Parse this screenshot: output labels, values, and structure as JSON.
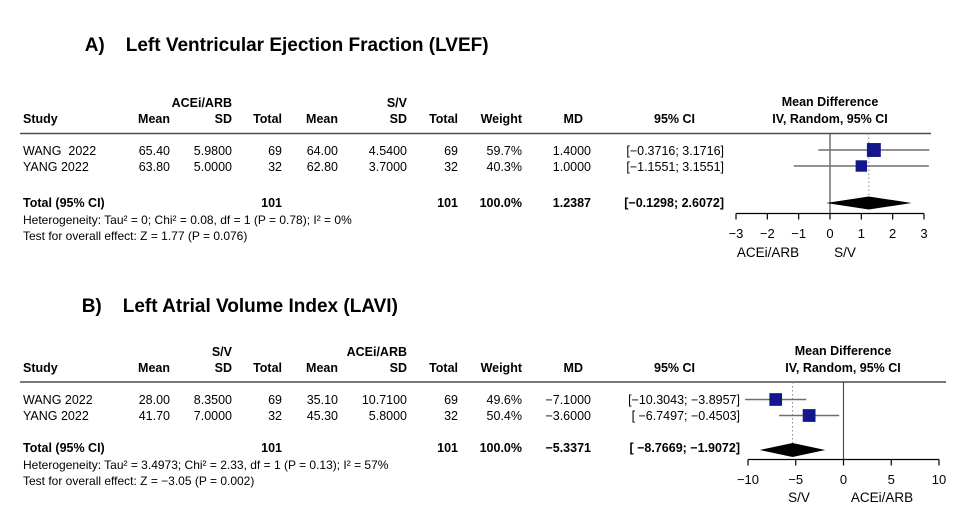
{
  "figure": {
    "panels": [
      {
        "label": "A)",
        "title": "Left Ventricular Ejection Fraction (LVEF)",
        "group1": "ACEi/ARB",
        "group2": "S/V",
        "columns": {
          "study": "Study",
          "mean": "Mean",
          "sd": "SD",
          "total": "Total",
          "weight": "Weight",
          "md": "MD",
          "ci": "95% CI"
        },
        "effect_header_line1": "Mean Difference",
        "effect_header_line2": "IV, Random, 95% CI",
        "rows": [
          {
            "study": "WANG  2022",
            "mean1": "65.40",
            "sd1": "5.9800",
            "total1": "69",
            "mean2": "64.00",
            "sd2": "4.5400",
            "total2": "69",
            "weight": "59.7%",
            "md": "1.4000",
            "ci": "[−0.3716; 3.1716]"
          },
          {
            "study": "YANG 2022",
            "mean1": "63.80",
            "sd1": "5.0000",
            "total1": "32",
            "mean2": "62.80",
            "sd2": "3.7000",
            "total2": "32",
            "weight": "40.3%",
            "md": "1.0000",
            "ci": "[−1.1551; 3.1551]"
          }
        ],
        "total_row": {
          "study": "Total (95% CI)",
          "total1": "101",
          "total2": "101",
          "weight": "100.0%",
          "md": "1.2387",
          "ci": "[−0.1298; 2.6072]"
        },
        "heterogeneity": "Heterogeneity: Tau² = 0; Chi² = 0.08, df = 1 (P = 0.78); I² = 0%",
        "overall_effect": "Test for overall effect: Z = 1.77 (P = 0.076)"
      },
      {
        "label": "B)",
        "title": "Left Atrial Volume Index (LAVI)",
        "group1": "S/V",
        "group2": "ACEi/ARB",
        "columns": {
          "study": "Study",
          "mean": "Mean",
          "sd": "SD",
          "total": "Total",
          "weight": "Weight",
          "md": "MD",
          "ci": "95% CI"
        },
        "effect_header_line1": "Mean Difference",
        "effect_header_line2": "IV, Random, 95% CI",
        "rows": [
          {
            "study": "WANG 2022",
            "mean1": "28.00",
            "sd1": "8.3500",
            "total1": "69",
            "mean2": "35.10",
            "sd2": "10.7100",
            "total2": "69",
            "weight": "49.6%",
            "md": "−7.1000",
            "ci": "[−10.3043; −3.8957]"
          },
          {
            "study": "YANG 2022",
            "mean1": "41.70",
            "sd1": "7.0000",
            "total1": "32",
            "mean2": "45.30",
            "sd2": "5.8000",
            "total2": "32",
            "weight": "50.4%",
            "md": "−3.6000",
            "ci": "[ −6.7497; −0.4503]"
          }
        ],
        "total_row": {
          "study": "Total (95% CI)",
          "total1": "101",
          "total2": "101",
          "weight": "100.0%",
          "md": "−5.3371",
          "ci": "[ −8.7669; −1.9072]"
        },
        "heterogeneity": "Heterogeneity: Tau² = 3.4973; Chi² = 2.33, df = 1 (P = 0.13); I² = 57%",
        "overall_effect": "Test for overall effect: Z = −3.05 (P = 0.002)"
      }
    ]
  },
  "chart_data": [
    {
      "type": "forest",
      "panel": "A",
      "outcome": "Left Ventricular Ejection Fraction (LVEF)",
      "effect_measure": "Mean Difference",
      "model": "IV, Random, 95% CI",
      "xlim": [
        -3,
        3
      ],
      "xticks": [
        -3,
        -2,
        -1,
        0,
        1,
        2,
        3
      ],
      "null_line": 0,
      "pooled_estimate_line": 1.2387,
      "favors_left_label": "ACEi/ARB",
      "favors_right_label": "S/V",
      "studies": [
        {
          "name": "WANG 2022",
          "md": 1.4,
          "ci_low": -0.3716,
          "ci_high": 3.1716,
          "weight_pct": 59.7
        },
        {
          "name": "YANG 2022",
          "md": 1.0,
          "ci_low": -1.1551,
          "ci_high": 3.1551,
          "weight_pct": 40.3
        }
      ],
      "pooled": {
        "md": 1.2387,
        "ci_low": -0.1298,
        "ci_high": 2.6072,
        "weight_pct": 100.0
      }
    },
    {
      "type": "forest",
      "panel": "B",
      "outcome": "Left Atrial Volume Index (LAVI)",
      "effect_measure": "Mean Difference",
      "model": "IV, Random, 95% CI",
      "xlim": [
        -10,
        10
      ],
      "xticks": [
        -10,
        -5,
        0,
        5,
        10
      ],
      "null_line": 0,
      "pooled_estimate_line": -5.3371,
      "favors_left_label": "S/V",
      "favors_right_label": "ACEi/ARB",
      "studies": [
        {
          "name": "WANG 2022",
          "md": -7.1,
          "ci_low": -10.3043,
          "ci_high": -3.8957,
          "weight_pct": 49.6
        },
        {
          "name": "YANG 2022",
          "md": -3.6,
          "ci_low": -6.7497,
          "ci_high": -0.4503,
          "weight_pct": 50.4
        }
      ],
      "pooled": {
        "md": -5.3371,
        "ci_low": -8.7669,
        "ci_high": -1.9072,
        "weight_pct": 100.0
      }
    }
  ],
  "colors": {
    "square": "#15158c",
    "diamond": "#000000",
    "ci_line": "#6e6e6e",
    "axis": "#000000",
    "rule": "#4d4d4d",
    "dotted_line": "#8c8c8c"
  }
}
